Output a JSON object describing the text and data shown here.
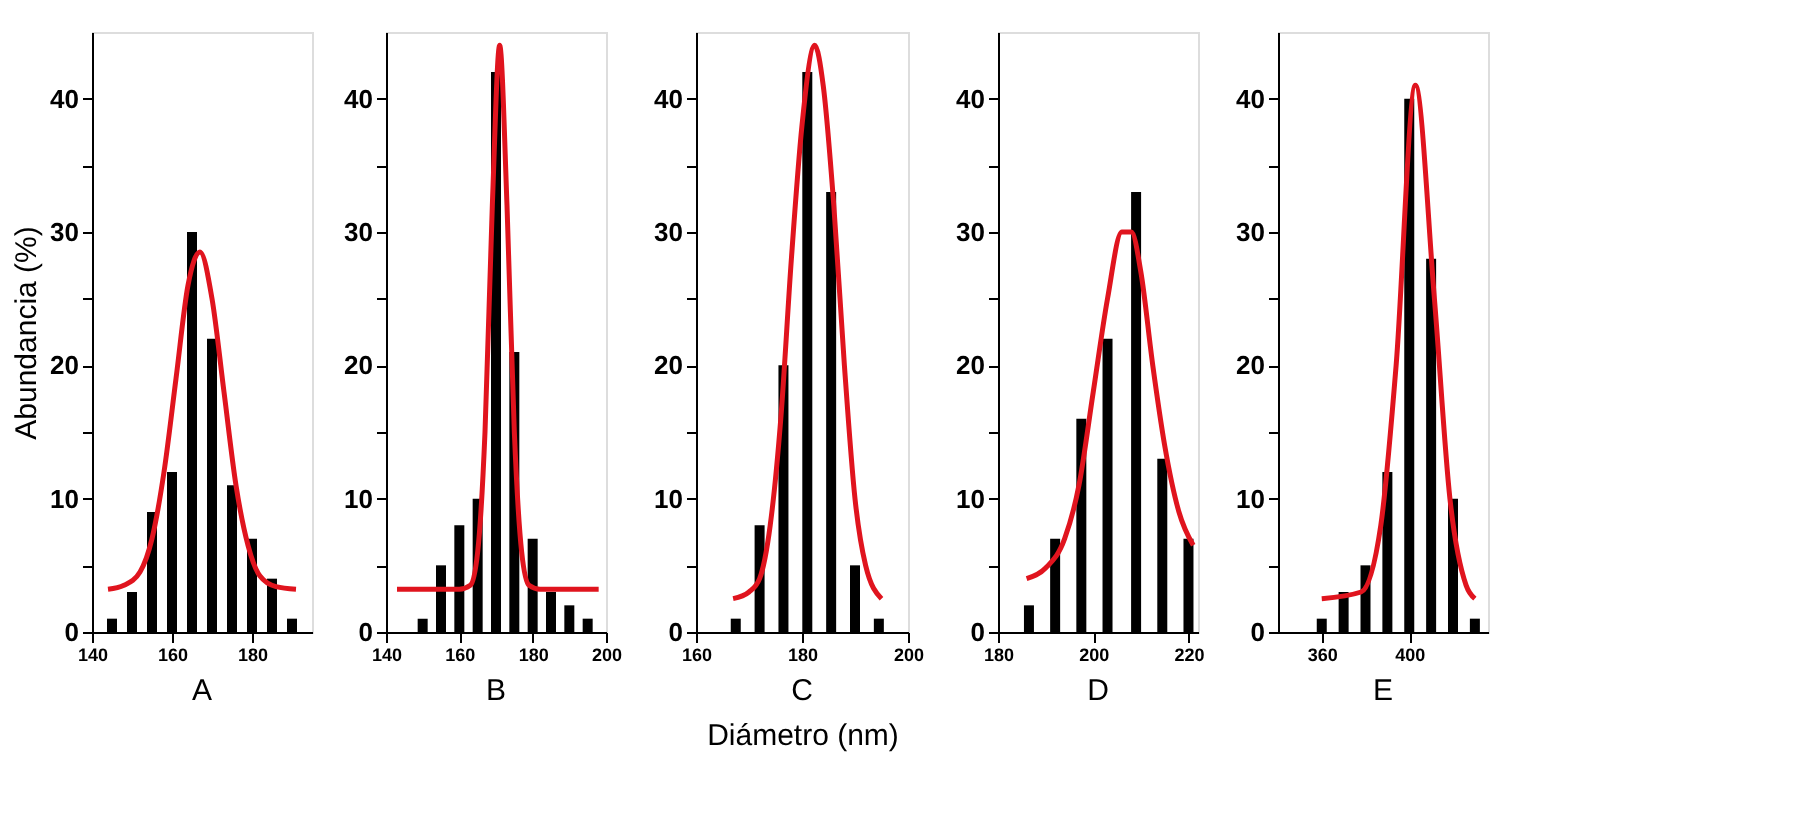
{
  "chart_data": [
    {
      "type": "bar",
      "ylabel": "Abundancia (%)",
      "annotations": [
        "A"
      ],
      "xlim": [
        140,
        195
      ],
      "xticks": [
        140,
        160,
        180
      ],
      "ylim": [
        0,
        45
      ],
      "yticks": [
        0,
        {
          "value": 5,
          "label": null
        },
        10,
        {
          "value": 15,
          "label": null
        },
        20,
        {
          "value": 25,
          "label": null
        },
        30,
        {
          "value": 35,
          "label": null
        },
        40
      ],
      "grid": false,
      "legend": false,
      "series": [
        {
          "type": "bar",
          "color": "#000000",
          "x": [
            145,
            150,
            155,
            160,
            165,
            170,
            175,
            180,
            185,
            190
          ],
          "values": [
            1,
            3,
            9,
            12,
            30,
            22,
            11,
            7,
            4,
            1
          ]
        },
        {
          "type": "line",
          "color": "#e0141e",
          "x": [
            144,
            148,
            152,
            155,
            158,
            161,
            164,
            167,
            170,
            173,
            176,
            179,
            182,
            186,
            191
          ],
          "values": [
            3.2,
            3.5,
            4.5,
            7,
            12,
            19,
            26,
            28.5,
            25,
            18,
            11,
            6.5,
            4.2,
            3.4,
            3.2
          ]
        }
      ]
    },
    {
      "type": "bar",
      "annotations": [
        "B"
      ],
      "xlim": [
        140,
        200
      ],
      "xticks": [
        140,
        160,
        180,
        200
      ],
      "ylim": [
        0,
        45
      ],
      "yticks": [
        0,
        {
          "value": 5,
          "label": null
        },
        10,
        {
          "value": 15,
          "label": null
        },
        20,
        {
          "value": 25,
          "label": null
        },
        30,
        {
          "value": 35,
          "label": null
        },
        40
      ],
      "grid": false,
      "legend": false,
      "series": [
        {
          "type": "bar",
          "color": "#000000",
          "x": [
            150,
            155,
            160,
            165,
            170,
            175,
            180,
            185,
            190,
            195
          ],
          "values": [
            1,
            5,
            8,
            10,
            42,
            21,
            7,
            3,
            2,
            1
          ]
        },
        {
          "type": "line",
          "color": "#e0141e",
          "x": [
            143,
            160,
            163,
            165,
            167,
            169,
            171,
            173,
            175,
            177,
            179,
            182,
            198
          ],
          "values": [
            3.2,
            3.2,
            3.5,
            6,
            15,
            32,
            44,
            32,
            15,
            6,
            3.5,
            3.2,
            3.2
          ]
        }
      ]
    },
    {
      "type": "bar",
      "xlabel": "Diámetro (nm)",
      "annotations": [
        "C"
      ],
      "xlim": [
        160,
        200
      ],
      "xticks": [
        160,
        180,
        200
      ],
      "ylim": [
        0,
        45
      ],
      "yticks": [
        0,
        {
          "value": 5,
          "label": null
        },
        10,
        {
          "value": 15,
          "label": null
        },
        20,
        {
          "value": 25,
          "label": null
        },
        30,
        {
          "value": 35,
          "label": null
        },
        40
      ],
      "grid": false,
      "legend": false,
      "series": [
        {
          "type": "bar",
          "color": "#000000",
          "x": [
            167.5,
            172,
            176.5,
            181,
            185.5,
            190,
            194.5
          ],
          "values": [
            1,
            8,
            20,
            42,
            33,
            5,
            1
          ]
        },
        {
          "type": "line",
          "color": "#e0141e",
          "x": [
            167,
            170,
            172,
            174,
            176,
            178,
            180,
            182.4,
            184,
            186,
            188,
            190,
            192,
            195
          ],
          "values": [
            2.5,
            3,
            4,
            8,
            16,
            28,
            38,
            44,
            41,
            32,
            20,
            10,
            5,
            2.5
          ]
        }
      ]
    },
    {
      "type": "bar",
      "annotations": [
        "D"
      ],
      "xlim": [
        180,
        222
      ],
      "xticks": [
        180,
        200,
        220
      ],
      "ylim": [
        0,
        45
      ],
      "yticks": [
        0,
        {
          "value": 5,
          "label": null
        },
        10,
        {
          "value": 15,
          "label": null
        },
        20,
        {
          "value": 25,
          "label": null
        },
        30,
        {
          "value": 35,
          "label": null
        },
        40
      ],
      "grid": false,
      "legend": false,
      "series": [
        {
          "type": "bar",
          "color": "#000000",
          "x": [
            186.5,
            192,
            197.5,
            203,
            209,
            214.5,
            220
          ],
          "values": [
            2,
            7,
            16,
            22,
            33,
            13,
            7
          ]
        },
        {
          "type": "line",
          "color": "#e0141e",
          "x": [
            186,
            190,
            194,
            197,
            200,
            203,
            206,
            208,
            210,
            212.5,
            215,
            218,
            221
          ],
          "values": [
            4,
            4.8,
            7,
            11,
            18,
            25,
            30,
            30,
            27,
            20,
            14,
            9,
            6.5
          ]
        }
      ]
    },
    {
      "type": "bar",
      "annotations": [
        "E"
      ],
      "xlim": [
        340,
        436
      ],
      "xticks": [
        360,
        400
      ],
      "ylim": [
        0,
        45
      ],
      "yticks": [
        0,
        {
          "value": 5,
          "label": null
        },
        10,
        {
          "value": 15,
          "label": null
        },
        20,
        {
          "value": 25,
          "label": null
        },
        30,
        {
          "value": 35,
          "label": null
        },
        40
      ],
      "grid": false,
      "legend": false,
      "series": [
        {
          "type": "bar",
          "color": "#000000",
          "x": [
            360,
            370,
            380,
            390,
            400,
            410,
            420,
            430
          ],
          "values": [
            1,
            3,
            5,
            12,
            40,
            28,
            10,
            1
          ]
        },
        {
          "type": "line",
          "color": "#e0141e",
          "x": [
            360,
            378,
            387,
            394,
            402.8,
            411.5,
            418.6,
            426,
            430
          ],
          "values": [
            2.5,
            3,
            8,
            20,
            41,
            25,
            10,
            3.5,
            2.5
          ]
        }
      ]
    }
  ]
}
